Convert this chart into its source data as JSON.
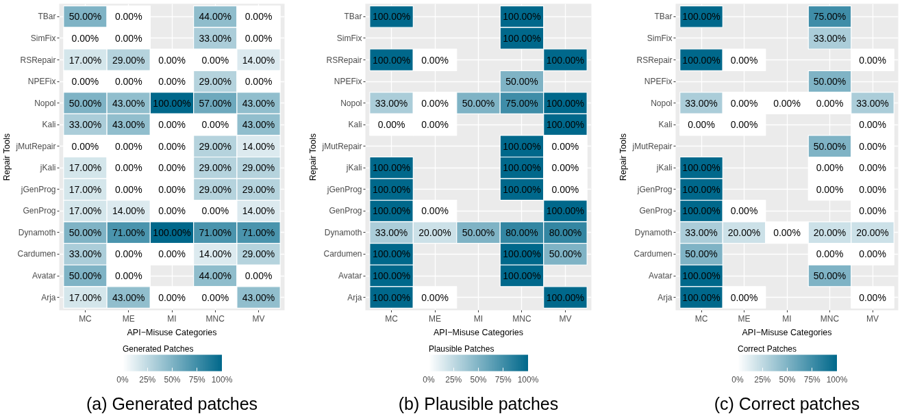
{
  "chart_data": [
    {
      "type": "heatmap",
      "xlabel": "API−Misuse Categories",
      "ylabel": "Repair Tools",
      "clabel": "Generated Patches",
      "annotations": [
        "(a) Generated patches"
      ],
      "grid": true,
      "colors": [
        "#ffffff",
        "#00688b"
      ],
      "categories": [
        "MC",
        "ME",
        "MI",
        "MNC",
        "MV"
      ],
      "y_categories": [
        "TBar",
        "SimFix",
        "RSRepair",
        "NPEFix",
        "Nopol",
        "Kali",
        "jMutRepair",
        "jKali",
        "jGenProg",
        "GenProg",
        "Dynamoth",
        "Cardumen",
        "Avatar",
        "Arja"
      ],
      "cells": [
        [
          50,
          0,
          null,
          44,
          0
        ],
        [
          0,
          0,
          null,
          33,
          0
        ],
        [
          17,
          29,
          0,
          0,
          14
        ],
        [
          0,
          0,
          0,
          29,
          0
        ],
        [
          50,
          43,
          100,
          57,
          43
        ],
        [
          33,
          43,
          0,
          0,
          43
        ],
        [
          0,
          0,
          0,
          29,
          14
        ],
        [
          17,
          0,
          0,
          29,
          29
        ],
        [
          17,
          0,
          0,
          29,
          29
        ],
        [
          17,
          14,
          0,
          0,
          14
        ],
        [
          50,
          71,
          100,
          71,
          71
        ],
        [
          33,
          0,
          0,
          14,
          29
        ],
        [
          50,
          0,
          null,
          44,
          0
        ],
        [
          17,
          43,
          0,
          0,
          43
        ]
      ],
      "cell_labels": [
        [
          "50.00%",
          "0.00%",
          null,
          "44.00%",
          "0.00%"
        ],
        [
          "0.00%",
          "0.00%",
          null,
          "33.00%",
          "0.00%"
        ],
        [
          "17.00%",
          "29.00%",
          "0.00%",
          "0.00%",
          "14.00%"
        ],
        [
          "0.00%",
          "0.00%",
          "0.00%",
          "29.00%",
          "0.00%"
        ],
        [
          "50.00%",
          "43.00%",
          "100.00%",
          "57.00%",
          "43.00%"
        ],
        [
          "33.00%",
          "43.00%",
          "0.00%",
          "0.00%",
          "43.00%"
        ],
        [
          "0.00%",
          "0.00%",
          "0.00%",
          "29.00%",
          "14.00%"
        ],
        [
          "17.00%",
          "0.00%",
          "0.00%",
          "29.00%",
          "29.00%"
        ],
        [
          "17.00%",
          "0.00%",
          "0.00%",
          "29.00%",
          "29.00%"
        ],
        [
          "17.00%",
          "14.00%",
          "0.00%",
          "0.00%",
          "14.00%"
        ],
        [
          "50.00%",
          "71.00%",
          "100.00%",
          "71.00%",
          "71.00%"
        ],
        [
          "33.00%",
          "0.00%",
          "0.00%",
          "14.00%",
          "29.00%"
        ],
        [
          "50.00%",
          "0.00%",
          null,
          "44.00%",
          "0.00%"
        ],
        [
          "17.00%",
          "43.00%",
          "0.00%",
          "0.00%",
          "43.00%"
        ]
      ],
      "clim": [
        0,
        100
      ],
      "cticks": [
        {
          "value": 0,
          "label": "0%"
        },
        {
          "value": 25,
          "label": "25%"
        },
        {
          "value": 50,
          "label": "50%"
        },
        {
          "value": 75,
          "label": "75%"
        },
        {
          "value": 100,
          "label": "100%"
        }
      ]
    },
    {
      "type": "heatmap",
      "xlabel": "API−Misuse Categories",
      "ylabel": "Repair Tools",
      "clabel": "Plausible Patches",
      "annotations": [
        "(b) Plausible patches"
      ],
      "grid": true,
      "colors": [
        "#ffffff",
        "#00688b"
      ],
      "categories": [
        "MC",
        "ME",
        "MI",
        "MNC",
        "MV"
      ],
      "y_categories": [
        "TBar",
        "SimFix",
        "RSRepair",
        "NPEFix",
        "Nopol",
        "Kali",
        "jMutRepair",
        "jKali",
        "jGenProg",
        "GenProg",
        "Dynamoth",
        "Cardumen",
        "Avatar",
        "Arja"
      ],
      "cells": [
        [
          100,
          null,
          null,
          100,
          null
        ],
        [
          null,
          null,
          null,
          100,
          null
        ],
        [
          100,
          0,
          null,
          null,
          100
        ],
        [
          null,
          null,
          null,
          50,
          null
        ],
        [
          33,
          0,
          50,
          75,
          100
        ],
        [
          0,
          0,
          null,
          null,
          100
        ],
        [
          null,
          null,
          null,
          100,
          0
        ],
        [
          100,
          null,
          null,
          100,
          0
        ],
        [
          100,
          null,
          null,
          100,
          0
        ],
        [
          100,
          0,
          null,
          null,
          100
        ],
        [
          33,
          20,
          50,
          80,
          80
        ],
        [
          100,
          null,
          null,
          100,
          50
        ],
        [
          100,
          null,
          null,
          100,
          null
        ],
        [
          100,
          0,
          null,
          null,
          100
        ]
      ],
      "cell_labels": [
        [
          "100.00%",
          null,
          null,
          "100.00%",
          null
        ],
        [
          null,
          null,
          null,
          "100.00%",
          null
        ],
        [
          "100.00%",
          "0.00%",
          null,
          null,
          "100.00%"
        ],
        [
          null,
          null,
          null,
          "50.00%",
          null
        ],
        [
          "33.00%",
          "0.00%",
          "50.00%",
          "75.00%",
          "100.00%"
        ],
        [
          "0.00%",
          "0.00%",
          null,
          null,
          "100.00%"
        ],
        [
          null,
          null,
          null,
          "100.00%",
          "0.00%"
        ],
        [
          "100.00%",
          null,
          null,
          "100.00%",
          "0.00%"
        ],
        [
          "100.00%",
          null,
          null,
          "100.00%",
          "0.00%"
        ],
        [
          "100.00%",
          "0.00%",
          null,
          null,
          "100.00%"
        ],
        [
          "33.00%",
          "20.00%",
          "50.00%",
          "80.00%",
          "80.00%"
        ],
        [
          "100.00%",
          null,
          null,
          "100.00%",
          "50.00%"
        ],
        [
          "100.00%",
          null,
          null,
          "100.00%",
          null
        ],
        [
          "100.00%",
          "0.00%",
          null,
          null,
          "100.00%"
        ]
      ],
      "clim": [
        0,
        100
      ],
      "cticks": [
        {
          "value": 0,
          "label": "0%"
        },
        {
          "value": 25,
          "label": "25%"
        },
        {
          "value": 50,
          "label": "50%"
        },
        {
          "value": 75,
          "label": "75%"
        },
        {
          "value": 100,
          "label": "100%"
        }
      ]
    },
    {
      "type": "heatmap",
      "xlabel": "API−Misuse Categories",
      "ylabel": "Repair Tools",
      "clabel": "Correct Patches",
      "annotations": [
        "(c) Correct patches"
      ],
      "grid": true,
      "colors": [
        "#ffffff",
        "#00688b"
      ],
      "categories": [
        "MC",
        "ME",
        "MI",
        "MNC",
        "MV"
      ],
      "y_categories": [
        "TBar",
        "SimFix",
        "RSRepair",
        "NPEFix",
        "Nopol",
        "Kali",
        "jMutRepair",
        "jKali",
        "jGenProg",
        "GenProg",
        "Dynamoth",
        "Cardumen",
        "Avatar",
        "Arja"
      ],
      "cells": [
        [
          100,
          null,
          null,
          75,
          null
        ],
        [
          null,
          null,
          null,
          33,
          null
        ],
        [
          100,
          0,
          null,
          null,
          0
        ],
        [
          null,
          null,
          null,
          50,
          null
        ],
        [
          33,
          0,
          0,
          0,
          33
        ],
        [
          0,
          0,
          null,
          null,
          0
        ],
        [
          null,
          null,
          null,
          50,
          0
        ],
        [
          100,
          null,
          null,
          0,
          0
        ],
        [
          100,
          null,
          null,
          0,
          0
        ],
        [
          100,
          0,
          null,
          null,
          0
        ],
        [
          33,
          20,
          0,
          20,
          20
        ],
        [
          50,
          null,
          null,
          0,
          0
        ],
        [
          100,
          null,
          null,
          50,
          null
        ],
        [
          100,
          0,
          null,
          null,
          0
        ]
      ],
      "cell_labels": [
        [
          "100.00%",
          null,
          null,
          "75.00%",
          null
        ],
        [
          null,
          null,
          null,
          "33.00%",
          null
        ],
        [
          "100.00%",
          "0.00%",
          null,
          null,
          "0.00%"
        ],
        [
          null,
          null,
          null,
          "50.00%",
          null
        ],
        [
          "33.00%",
          "0.00%",
          "0.00%",
          "0.00%",
          "33.00%"
        ],
        [
          "0.00%",
          "0.00%",
          null,
          null,
          "0.00%"
        ],
        [
          null,
          null,
          null,
          "50.00%",
          "0.00%"
        ],
        [
          "100.00%",
          null,
          null,
          "0.00%",
          "0.00%"
        ],
        [
          "100.00%",
          null,
          null,
          "0.00%",
          "0.00%"
        ],
        [
          "100.00%",
          "0.00%",
          null,
          null,
          "0.00%"
        ],
        [
          "33.00%",
          "20.00%",
          "0.00%",
          "20.00%",
          "20.00%"
        ],
        [
          "50.00%",
          null,
          null,
          "0.00%",
          "0.00%"
        ],
        [
          "100.00%",
          null,
          null,
          "50.00%",
          null
        ],
        [
          "100.00%",
          "0.00%",
          null,
          null,
          "0.00%"
        ]
      ],
      "clim": [
        0,
        100
      ],
      "cticks": [
        {
          "value": 0,
          "label": "0%"
        },
        {
          "value": 25,
          "label": "25%"
        },
        {
          "value": 50,
          "label": "50%"
        },
        {
          "value": 75,
          "label": "75%"
        },
        {
          "value": 100,
          "label": "100%"
        }
      ]
    }
  ]
}
